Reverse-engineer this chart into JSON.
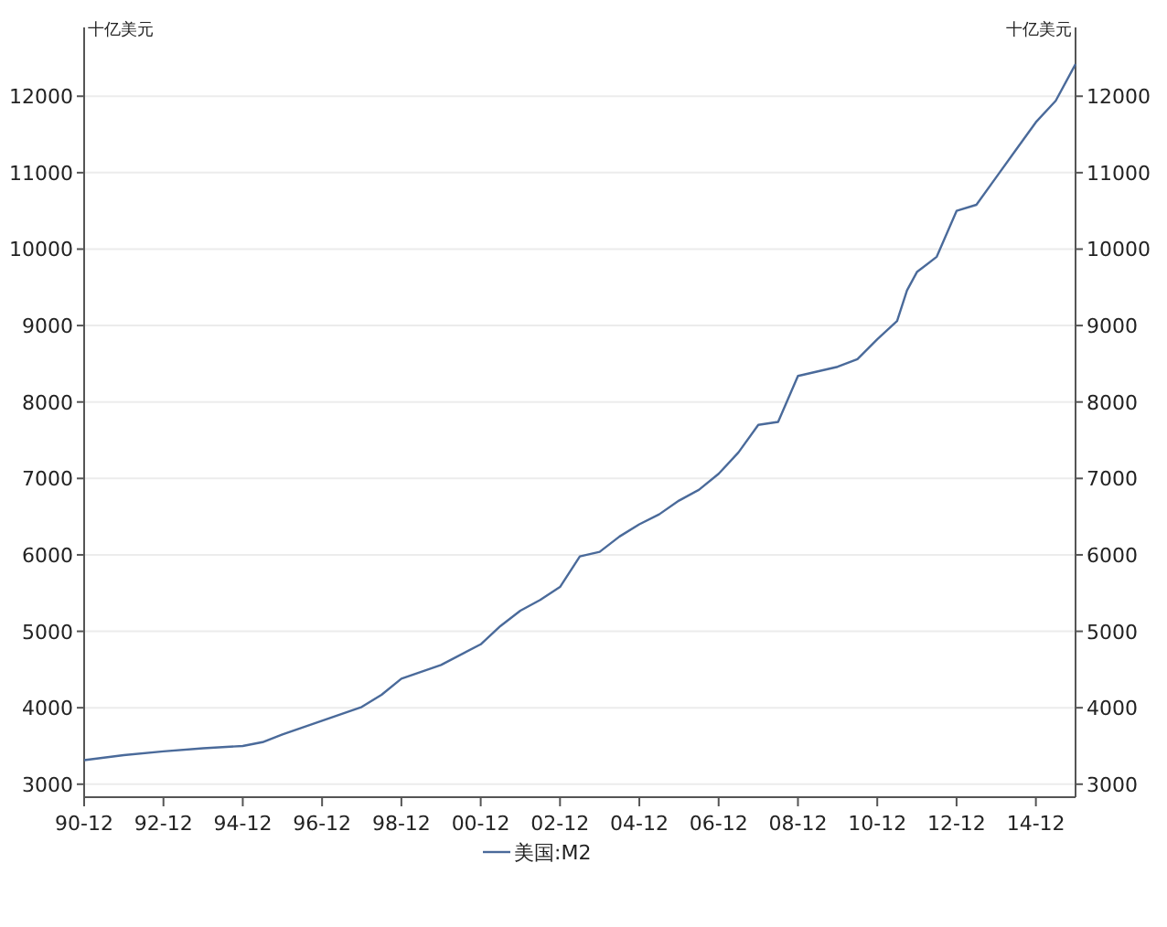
{
  "chart_data": {
    "type": "line",
    "ylabel": "十亿美元",
    "y2label": "十亿美元",
    "x": [
      "1990-12",
      "1991-12",
      "1992-12",
      "1993-12",
      "1994-12",
      "1995-06",
      "1995-12",
      "1996-12",
      "1997-12",
      "1998-06",
      "1998-12",
      "1999-12",
      "2000-12",
      "2001-06",
      "2001-12",
      "2002-06",
      "2002-12",
      "2003-06",
      "2003-12",
      "2004-06",
      "2004-12",
      "2005-06",
      "2005-12",
      "2006-06",
      "2006-12",
      "2007-06",
      "2007-12",
      "2008-06",
      "2008-12",
      "2009-06",
      "2009-12",
      "2010-06",
      "2010-12",
      "2011-06",
      "2011-09",
      "2011-12",
      "2012-06",
      "2012-12",
      "2013-06",
      "2013-12",
      "2014-06",
      "2014-12",
      "2015-06",
      "2015-12"
    ],
    "series": [
      {
        "name": "美国:M2",
        "color": "#4a6a9a",
        "values": [
          3315,
          3380,
          3430,
          3470,
          3500,
          3550,
          3650,
          3830,
          4010,
          4170,
          4380,
          4560,
          4830,
          5070,
          5270,
          5410,
          5580,
          5980,
          6040,
          6240,
          6400,
          6530,
          6710,
          6850,
          7060,
          7340,
          7700,
          7740,
          8340,
          8400,
          8460,
          8560,
          8820,
          9060,
          9460,
          9700,
          9900,
          10500,
          10580,
          10940,
          11300,
          11660,
          11940,
          12420
        ]
      }
    ],
    "xlim": [
      "1990-12",
      "2015-12"
    ],
    "xticks": [
      {
        "value": "1990-12",
        "label": "90-12"
      },
      {
        "value": "1992-12",
        "label": "92-12"
      },
      {
        "value": "1994-12",
        "label": "94-12"
      },
      {
        "value": "1996-12",
        "label": "96-12"
      },
      {
        "value": "1998-12",
        "label": "98-12"
      },
      {
        "value": "2000-12",
        "label": "00-12"
      },
      {
        "value": "2002-12",
        "label": "02-12"
      },
      {
        "value": "2004-12",
        "label": "04-12"
      },
      {
        "value": "2006-12",
        "label": "06-12"
      },
      {
        "value": "2008-12",
        "label": "08-12"
      },
      {
        "value": "2010-12",
        "label": "10-12"
      },
      {
        "value": "2012-12",
        "label": "12-12"
      },
      {
        "value": "2014-12",
        "label": "14-12"
      }
    ],
    "ylim": [
      2830,
      12900
    ],
    "yticks": [
      3000,
      4000,
      5000,
      6000,
      7000,
      8000,
      9000,
      10000,
      11000,
      12000
    ],
    "y2lim": [
      2830,
      12900
    ],
    "y2ticks": [
      3000,
      4000,
      5000,
      6000,
      7000,
      8000,
      9000,
      10000,
      11000,
      12000
    ],
    "grid": "y",
    "legend": "bottom"
  }
}
